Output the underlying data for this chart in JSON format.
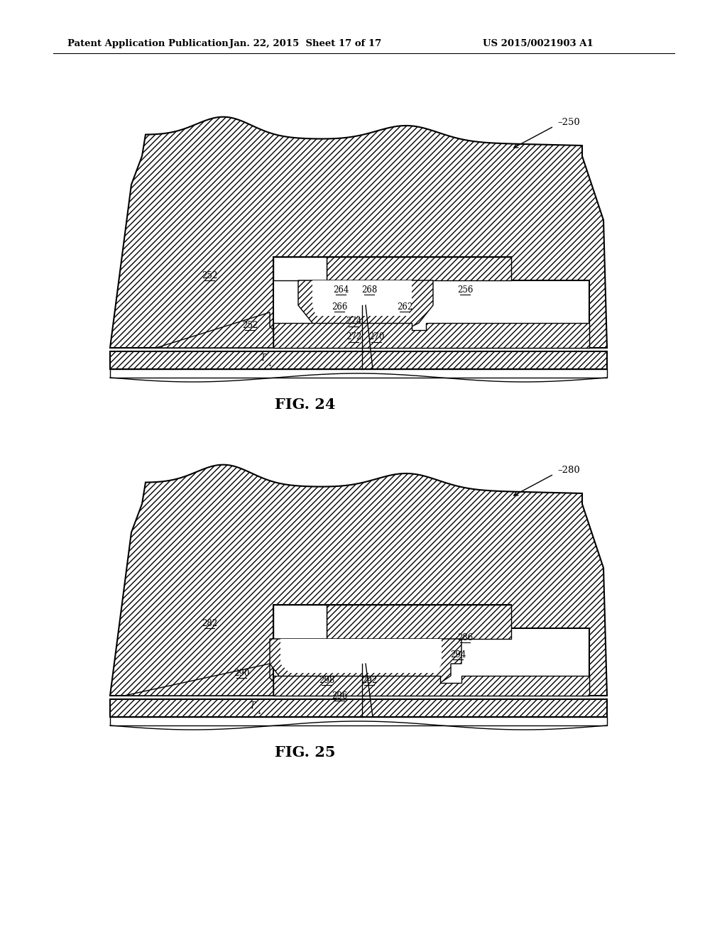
{
  "header_left": "Patent Application Publication",
  "header_center": "Jan. 22, 2015  Sheet 17 of 17",
  "header_right": "US 2015/0021903 A1",
  "fig24_label": "FIG. 24",
  "fig25_label": "FIG. 25",
  "background_color": "#ffffff",
  "line_color": "#000000",
  "text_color": "#000000",
  "font_size_header": 9.5,
  "font_size_label": 8.5,
  "font_size_fig": 15
}
